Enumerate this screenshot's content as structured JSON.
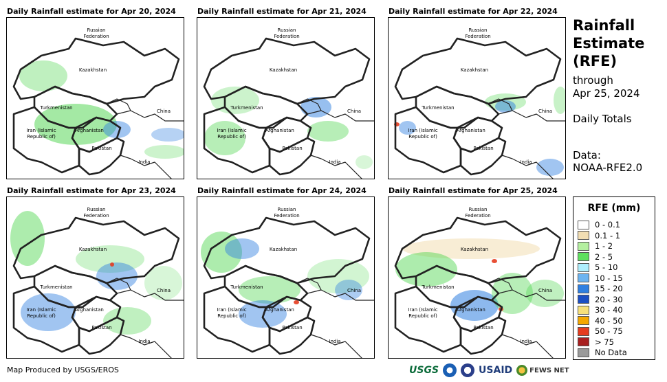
{
  "title": {
    "heading": "Rainfall Estimate (RFE)",
    "through": "through",
    "through_date": "Apr 25, 2024",
    "totals": "Daily Totals",
    "data_label": "Data:",
    "data_source": "NOAA-RFE2.0"
  },
  "panels": [
    {
      "title": "Daily Rainfall estimate for Apr 20, 2024",
      "rain": [
        [
          "#7fe27f",
          18,
          62,
          70,
          45,
          0.5
        ],
        [
          "#4ad44a",
          40,
          125,
          120,
          60,
          0.5
        ],
        [
          "#2f7fe0",
          140,
          150,
          40,
          25,
          0.45
        ],
        [
          "#2f7fe0",
          210,
          160,
          50,
          20,
          0.35
        ],
        [
          "#7fe27f",
          200,
          185,
          60,
          20,
          0.4
        ]
      ]
    },
    {
      "title": "Daily Rainfall estimate for Apr 21, 2024",
      "rain": [
        [
          "#7fe27f",
          20,
          100,
          70,
          40,
          0.4
        ],
        [
          "#4ad44a",
          10,
          150,
          60,
          50,
          0.4
        ],
        [
          "#2f7fe0",
          150,
          115,
          45,
          30,
          0.5
        ],
        [
          "#4ad44a",
          160,
          150,
          60,
          30,
          0.4
        ],
        [
          "#7fe27f",
          230,
          200,
          25,
          20,
          0.3
        ]
      ]
    },
    {
      "title": "Daily Rainfall estimate for Apr 22, 2024",
      "rain": [
        [
          "#e53c1f",
          8,
          152,
          8,
          6,
          0.9
        ],
        [
          "#2f7fe0",
          15,
          150,
          25,
          20,
          0.45
        ],
        [
          "#7fe27f",
          140,
          110,
          60,
          25,
          0.45
        ],
        [
          "#2f7fe0",
          155,
          120,
          30,
          18,
          0.5
        ],
        [
          "#2f7fe0",
          215,
          205,
          40,
          25,
          0.45
        ],
        [
          "#4ad44a",
          240,
          100,
          20,
          40,
          0.3
        ]
      ]
    },
    {
      "title": "Daily Rainfall estimate for Apr 23, 2024",
      "rain": [
        [
          "#4ad44a",
          5,
          20,
          50,
          80,
          0.45
        ],
        [
          "#2f7fe0",
          20,
          140,
          80,
          55,
          0.45
        ],
        [
          "#7fe27f",
          100,
          70,
          100,
          40,
          0.4
        ],
        [
          "#2f7fe0",
          130,
          95,
          60,
          40,
          0.45
        ],
        [
          "#4ad44a",
          140,
          160,
          70,
          40,
          0.35
        ],
        [
          "#e53c1f",
          150,
          95,
          6,
          6,
          0.9
        ],
        [
          "#7fe27f",
          200,
          100,
          55,
          50,
          0.3
        ]
      ]
    },
    {
      "title": "Daily Rainfall estimate for Apr 24, 2024",
      "rain": [
        [
          "#4ad44a",
          5,
          50,
          60,
          60,
          0.45
        ],
        [
          "#2f7fe0",
          40,
          60,
          50,
          30,
          0.45
        ],
        [
          "#4ad44a",
          60,
          115,
          90,
          40,
          0.4
        ],
        [
          "#2f7fe0",
          60,
          150,
          70,
          40,
          0.45
        ],
        [
          "#7fe27f",
          160,
          90,
          90,
          50,
          0.35
        ],
        [
          "#2f7fe0",
          200,
          120,
          40,
          30,
          0.4
        ],
        [
          "#e53c1f",
          140,
          150,
          8,
          6,
          0.9
        ]
      ]
    },
    {
      "title": "Daily Rainfall estimate for Apr 25, 2024",
      "rain": [
        [
          "#f2deb3",
          20,
          60,
          200,
          30,
          0.55
        ],
        [
          "#4ad44a",
          10,
          80,
          90,
          50,
          0.45
        ],
        [
          "#2f7fe0",
          90,
          135,
          70,
          45,
          0.55
        ],
        [
          "#4ad44a",
          150,
          110,
          60,
          60,
          0.4
        ],
        [
          "#e53c1f",
          160,
          160,
          7,
          6,
          0.9
        ],
        [
          "#e53c1f",
          150,
          90,
          8,
          6,
          0.9
        ],
        [
          "#4ad44a",
          200,
          120,
          55,
          40,
          0.35
        ]
      ]
    }
  ],
  "countries": {
    "russia_1": "Russian",
    "russia_2": "Federation",
    "kazakhstan": "Kazakhstan",
    "turkmenistan": "Turkmenistan",
    "china": "China",
    "iran_1": "Iran (Islamic",
    "iran_2": "Republic of)",
    "afghanistan": "Afghanistan",
    "pakistan": "Pakistan",
    "india": "India"
  },
  "legend": {
    "title": "RFE (mm)",
    "items": [
      {
        "label": "0 - 0.1",
        "color": "#ffffff"
      },
      {
        "label": "0.1 - 1",
        "color": "#f2deb3"
      },
      {
        "label": "1 - 2",
        "color": "#b4f0a0"
      },
      {
        "label": "2 - 5",
        "color": "#5fe05f"
      },
      {
        "label": "5 - 10",
        "color": "#aeeefc"
      },
      {
        "label": "10 - 15",
        "color": "#6cb4f0"
      },
      {
        "label": "15 - 20",
        "color": "#2f7fe0"
      },
      {
        "label": "20 - 30",
        "color": "#1c4fc4"
      },
      {
        "label": "30 - 40",
        "color": "#f7e07a"
      },
      {
        "label": "40 - 50",
        "color": "#f5a800"
      },
      {
        "label": "50 - 75",
        "color": "#e53c1f"
      },
      {
        "label": "> 75",
        "color": "#a82020"
      },
      {
        "label": "No Data",
        "color": "#9a9a9a"
      }
    ]
  },
  "credit": "Map Produced by USGS/EROS",
  "logos": {
    "usgs": "USGS",
    "usaid": "USAID",
    "fews": "FEWS NET"
  }
}
